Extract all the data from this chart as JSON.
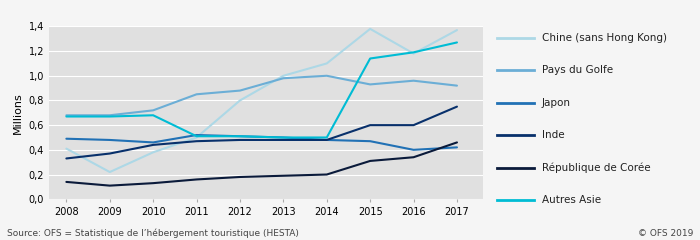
{
  "title": "",
  "ylabel": "Millions",
  "xlabel": "",
  "years": [
    2008,
    2009,
    2010,
    2011,
    2012,
    2013,
    2014,
    2015,
    2016,
    2017
  ],
  "series": [
    {
      "name": "Chine (sans Hong Kong)",
      "values": [
        0.41,
        0.22,
        0.38,
        0.5,
        0.8,
        1.0,
        1.1,
        1.38,
        1.18,
        1.37
      ],
      "color": "#add8e6",
      "linewidth": 1.5
    },
    {
      "name": "Pays du Golfe",
      "values": [
        0.68,
        0.68,
        0.72,
        0.85,
        0.88,
        0.98,
        1.0,
        0.93,
        0.96,
        0.92
      ],
      "color": "#6baed6",
      "linewidth": 1.5
    },
    {
      "name": "Japon",
      "values": [
        0.49,
        0.48,
        0.46,
        0.52,
        0.51,
        0.5,
        0.48,
        0.47,
        0.4,
        0.42
      ],
      "color": "#2171b5",
      "linewidth": 1.5
    },
    {
      "name": "Inde",
      "values": [
        0.33,
        0.37,
        0.44,
        0.47,
        0.48,
        0.48,
        0.48,
        0.6,
        0.6,
        0.75
      ],
      "color": "#08306b",
      "linewidth": 1.5
    },
    {
      "name": "République de Corée",
      "values": [
        0.14,
        0.11,
        0.13,
        0.16,
        0.18,
        0.19,
        0.2,
        0.31,
        0.34,
        0.46
      ],
      "color": "#0a1a3a",
      "linewidth": 1.5
    },
    {
      "name": "Autres Asie",
      "values": [
        0.67,
        0.67,
        0.68,
        0.51,
        0.51,
        0.5,
        0.5,
        1.14,
        1.19,
        1.27
      ],
      "color": "#00bcd4",
      "linewidth": 1.5
    }
  ],
  "ylim": [
    0.0,
    1.4
  ],
  "yticks": [
    0.0,
    0.2,
    0.4,
    0.6,
    0.8,
    1.0,
    1.2,
    1.4
  ],
  "ytick_labels": [
    "0,0",
    "0,2",
    "0,4",
    "0,6",
    "0,8",
    "1,0",
    "1,2",
    "1,4"
  ],
  "plot_bg_color": "#e0e0e0",
  "fig_bg_color": "#f5f5f5",
  "legend_bg_color": "#f5f5f5",
  "grid_color": "#ffffff",
  "source_text": "Source: OFS = Statistique de l’hébergement touristique (HESTA)",
  "copyright_text": "© OFS 2019",
  "legend_fontsize": 7.5,
  "tick_fontsize": 7,
  "label_fontsize": 8
}
